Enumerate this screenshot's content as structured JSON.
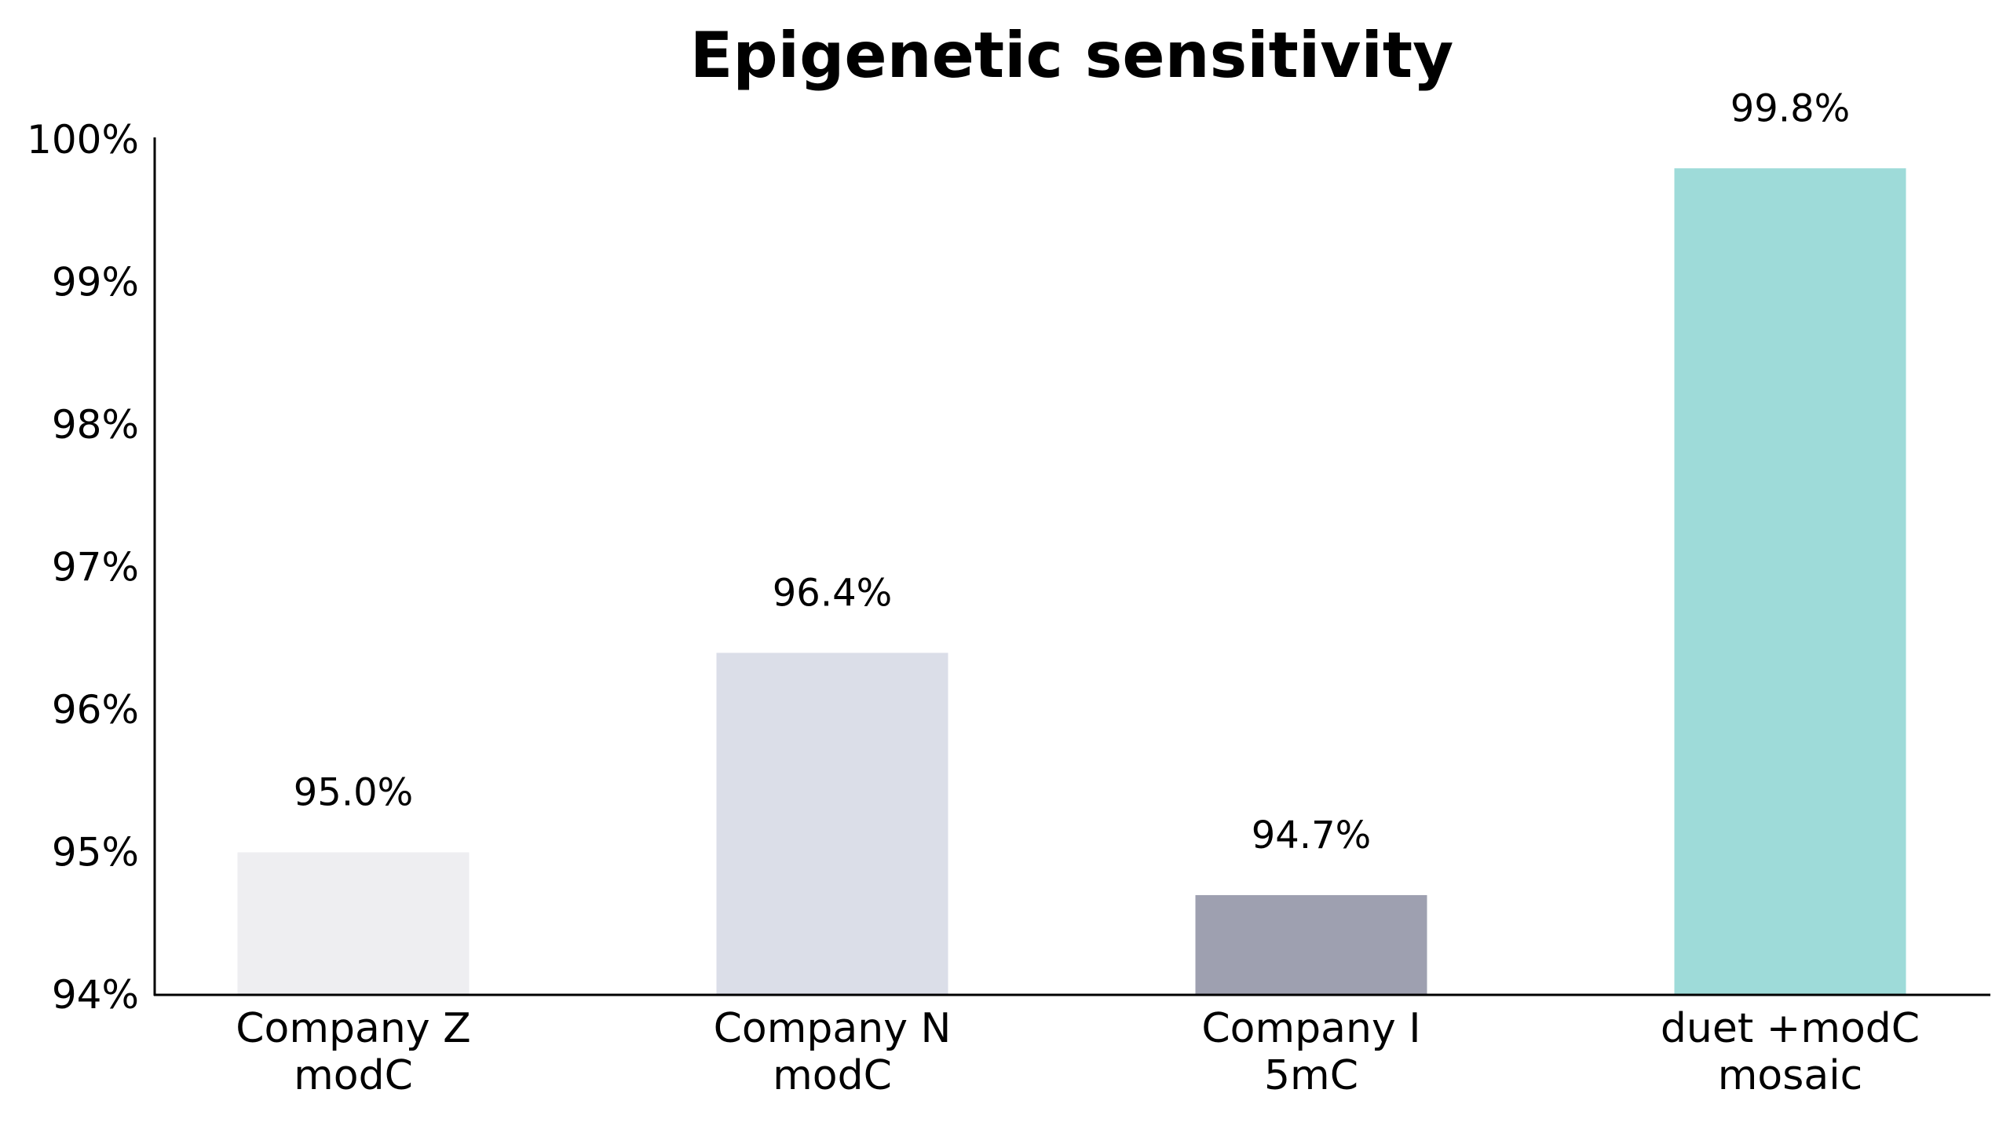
{
  "chart_data": {
    "type": "bar",
    "title": "Epigenetic sensitivity",
    "xlabel": "",
    "ylabel": "",
    "ylim": [
      94,
      100
    ],
    "yticks": [
      94,
      95,
      96,
      97,
      98,
      99,
      100
    ],
    "ytick_labels": [
      "94%",
      "95%",
      "96%",
      "97%",
      "98%",
      "99%",
      "100%"
    ],
    "categories": [
      [
        "Company Z",
        "modC"
      ],
      [
        "Company N",
        "modC"
      ],
      [
        "Company I",
        "5mC"
      ],
      [
        "duet +modC",
        "mosaic"
      ]
    ],
    "values": [
      95.0,
      96.4,
      94.7,
      99.8
    ],
    "value_labels": [
      "95.0%",
      "96.4%",
      "94.7%",
      "99.8%"
    ],
    "bar_colors": [
      "#eeeef1",
      "#dbdee8",
      "#9ea0b0",
      "#9edbd9"
    ],
    "grid": false,
    "legend": "none"
  }
}
